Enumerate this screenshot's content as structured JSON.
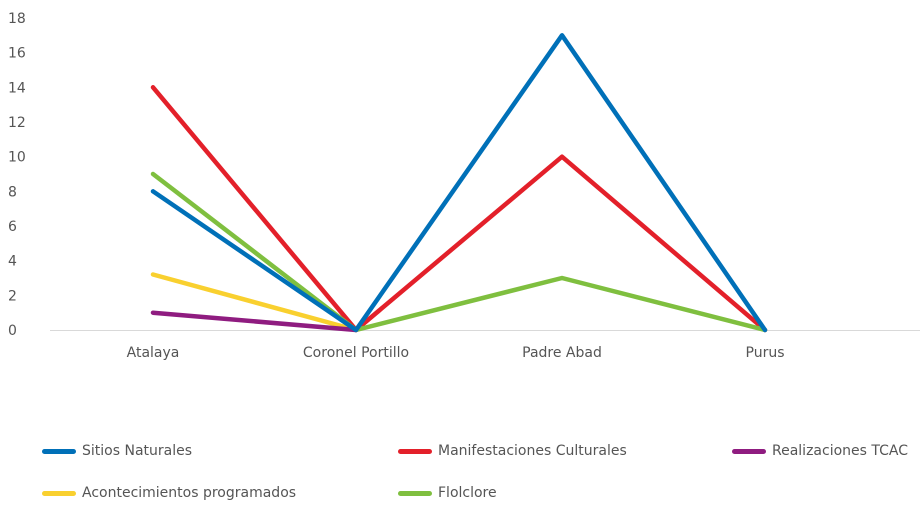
{
  "chart_data": {
    "type": "line",
    "categories": [
      "Atalaya",
      "Coronel Portillo",
      "Padre Abad",
      "Purus"
    ],
    "ylim": [
      0,
      18
    ],
    "yticks": [
      0,
      2,
      4,
      6,
      8,
      10,
      12,
      14,
      16,
      18
    ],
    "grid": false,
    "legend_position": "bottom",
    "series": [
      {
        "name": "Sitios Naturales",
        "color": "#0070b8",
        "values": [
          8,
          0,
          17,
          0
        ]
      },
      {
        "name": "Manifestaciones Culturales",
        "color": "#e3202a",
        "values": [
          14,
          0,
          10,
          0
        ]
      },
      {
        "name": "Realizaciones TCAC",
        "color": "#8f1c80",
        "values": [
          1,
          0,
          null,
          null
        ]
      },
      {
        "name": "Acontecimientos programados",
        "color": "#f9d02f",
        "values": [
          3.2,
          0,
          null,
          null
        ]
      },
      {
        "name": "Flolclore",
        "color": "#7fbf3f",
        "values": [
          9,
          0,
          3,
          0
        ]
      }
    ]
  }
}
